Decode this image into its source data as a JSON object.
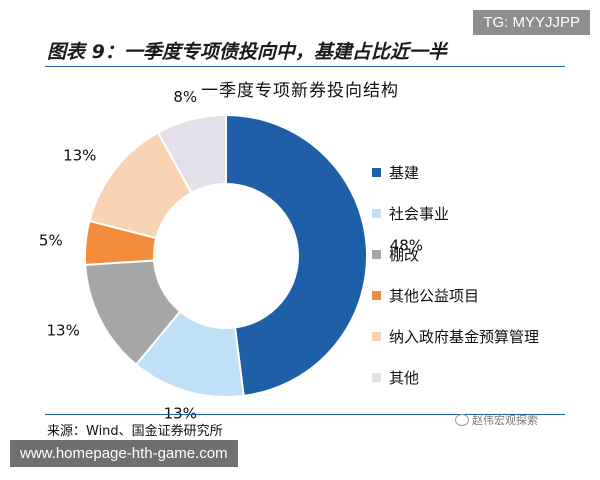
{
  "figure_title": "图表 9：一季度专项债投向中，基建占比近一半",
  "source": "来源：Wind、国金证券研究所",
  "logo_text": "赵伟宏观探索",
  "watermark_top": "TG: MYYJJPP",
  "watermark_bottom": "www.homepage-hth-game.com",
  "chart_data": {
    "type": "pie",
    "title": "一季度专项新券投向结构",
    "donut": true,
    "legend_position": "right",
    "slices": [
      {
        "label": "基建",
        "value": 48,
        "display": "48%",
        "color": "#1f5fa8"
      },
      {
        "label": "社会事业",
        "value": 13,
        "display": "13%",
        "color": "#bfe0f5"
      },
      {
        "label": "棚改",
        "value": 13,
        "display": "13%",
        "color": "#a6a6a6"
      },
      {
        "label": "其他公益项目",
        "value": 5,
        "display": "5%",
        "color": "#f28c3b"
      },
      {
        "label": "纳入政府基金预算管理",
        "value": 13,
        "display": "13%",
        "color": "#f9d4b4"
      },
      {
        "label": "其他",
        "value": 8,
        "display": "8%",
        "color": "#e3e0ea"
      }
    ]
  }
}
